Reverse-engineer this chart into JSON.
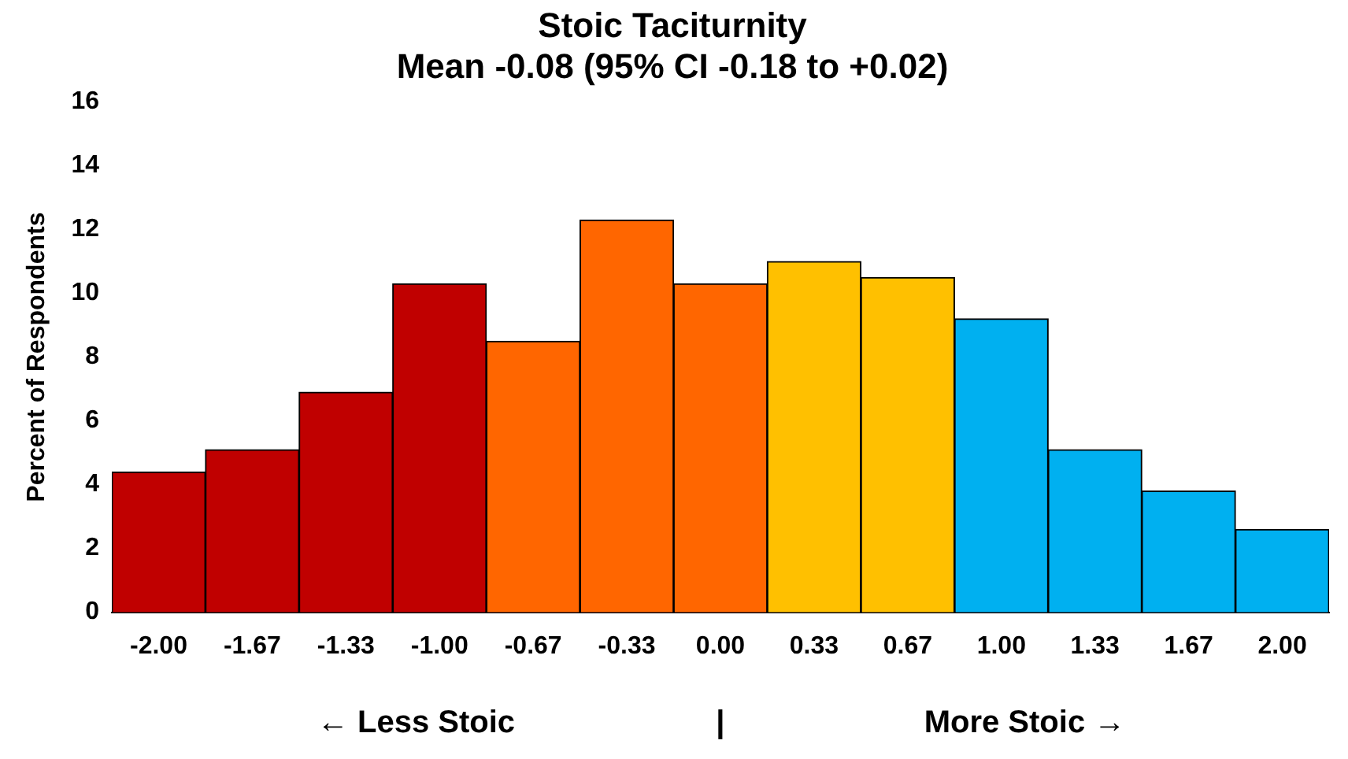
{
  "chart_data": {
    "type": "bar",
    "title": [
      "Stoic Taciturnity",
      "Mean -0.08 (95% CI -0.18 to +0.02)"
    ],
    "ylabel": "Percent of Respondents",
    "categories": [
      "-2.00",
      "-1.67",
      "-1.33",
      "-1.00",
      "-0.67",
      "-0.33",
      "0.00",
      "0.33",
      "0.67",
      "1.00",
      "1.33",
      "1.67",
      "2.00"
    ],
    "values": [
      4.4,
      5.1,
      6.9,
      10.3,
      8.5,
      12.3,
      10.3,
      11.0,
      10.5,
      9.2,
      5.1,
      3.8,
      2.6
    ],
    "colors": [
      "#c00000",
      "#c00000",
      "#c00000",
      "#c00000",
      "#ff6600",
      "#ff6600",
      "#ff6600",
      "#ffc000",
      "#ffc000",
      "#00b0f0",
      "#00b0f0",
      "#00b0f0",
      "#00b0f0"
    ],
    "ylim": [
      0,
      16
    ],
    "yticks": [
      0,
      2,
      4,
      6,
      8,
      10,
      12,
      14,
      16
    ],
    "grid": false,
    "legend": false,
    "annotations": [
      "← Less Stoic",
      "|",
      "More Stoic →"
    ]
  }
}
